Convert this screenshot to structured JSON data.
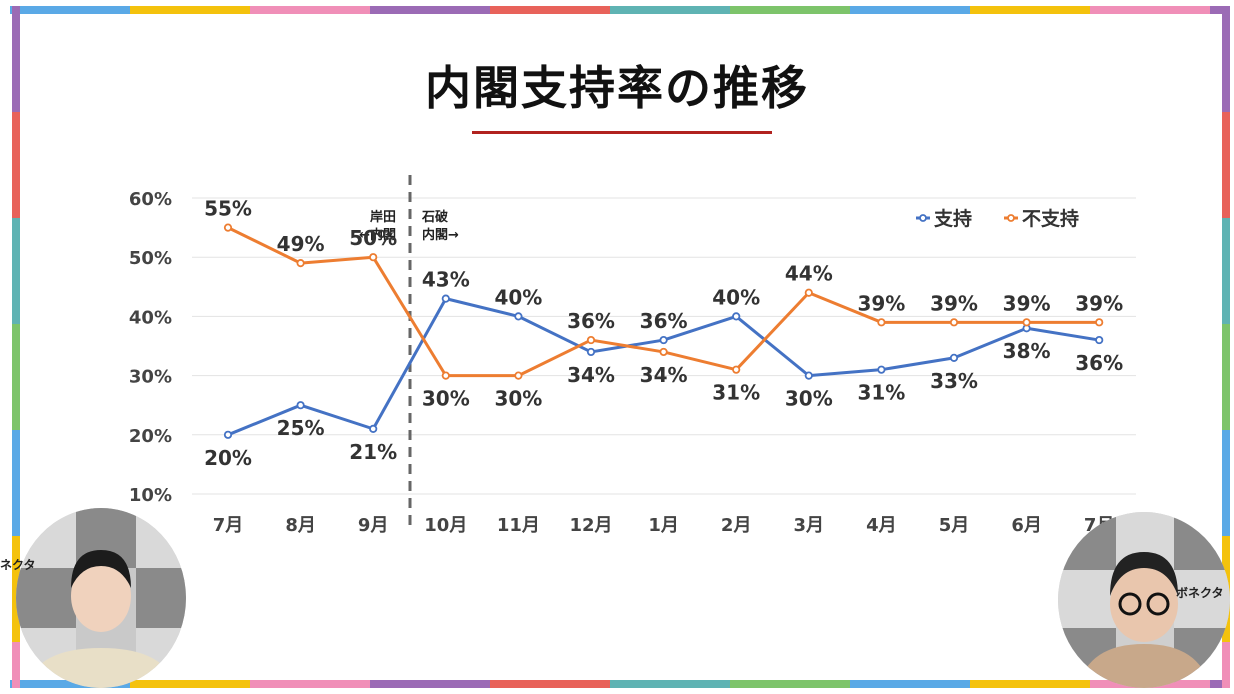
{
  "title": "内閣支持率の推移",
  "chart_data": {
    "type": "line",
    "categories": [
      "7月",
      "8月",
      "9月",
      "10月",
      "11月",
      "12月",
      "1月",
      "2月",
      "3月",
      "4月",
      "5月",
      "6月",
      "7月"
    ],
    "series": [
      {
        "name": "支持",
        "color": "#4472c4",
        "values": [
          20,
          25,
          21,
          43,
          40,
          34,
          36,
          40,
          30,
          31,
          33,
          38,
          36
        ]
      },
      {
        "name": "不支持",
        "color": "#ed7d31",
        "values": [
          55,
          49,
          50,
          30,
          30,
          36,
          34,
          31,
          44,
          39,
          39,
          39,
          39
        ]
      }
    ],
    "labels": {
      "support": [
        "20%",
        "25%",
        "21%",
        "43%",
        "40%",
        "34%",
        "36%",
        "40%",
        "30%",
        "31%",
        "33%",
        "38%",
        "36%"
      ],
      "nonsupport": [
        "55%",
        "49%",
        "50%",
        "30%",
        "30%",
        "36%",
        "34%",
        "31%",
        "44%",
        "39%",
        "39%",
        "39%",
        "39%"
      ]
    },
    "yticks": [
      "10%",
      "20%",
      "30%",
      "40%",
      "50%",
      "60%"
    ],
    "ylim": [
      10,
      60
    ],
    "grid": true,
    "legend_position": "top-right",
    "divider": {
      "after_index": 2,
      "left_label": [
        "岸田",
        "←内閣"
      ],
      "right_label": [
        "石破",
        "内閣→"
      ]
    }
  },
  "brand": {
    "left": "ネクタ",
    "right": "ボネクタ"
  }
}
